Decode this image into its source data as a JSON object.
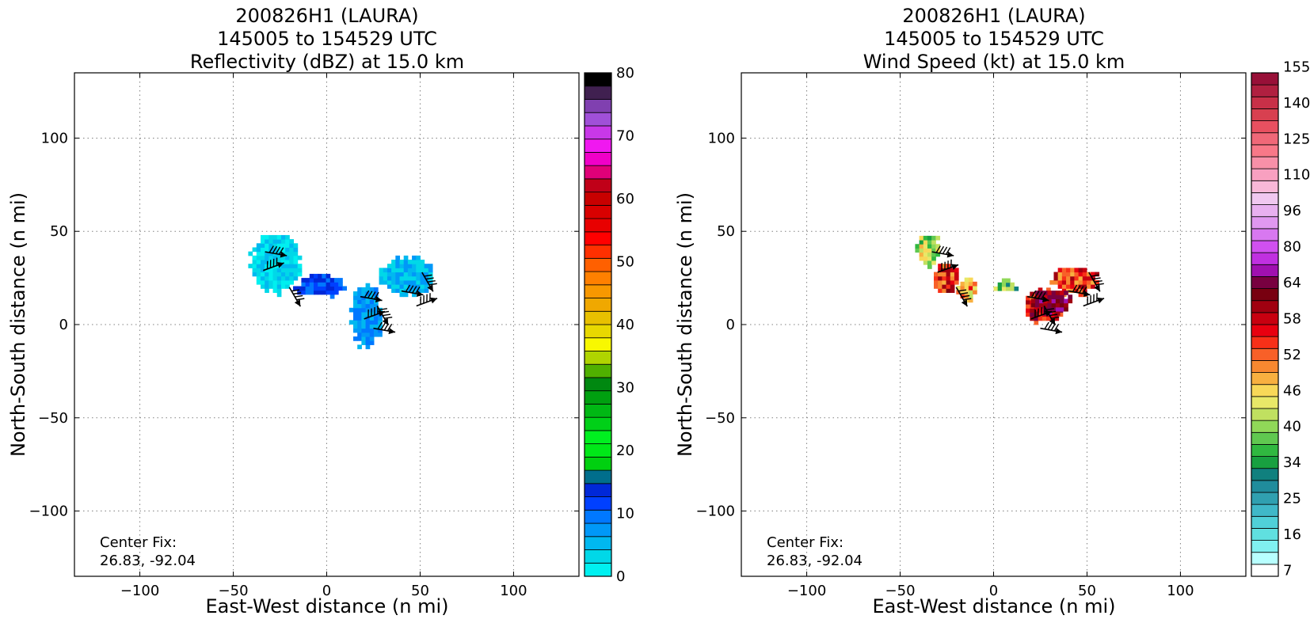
{
  "colors": {
    "background": "#ffffff",
    "grid": "#808080",
    "reflectivity_levels": [
      "#00f0f0",
      "#00d8e8",
      "#00b8f0",
      "#0098f8",
      "#0078ff",
      "#0040ff",
      "#0028d8",
      "#006e8c",
      "#00d010",
      "#00e818",
      "#00f020",
      "#00d018",
      "#00b814",
      "#00a010",
      "#008810",
      "#50b000",
      "#b0d400",
      "#f8f800",
      "#e8d800",
      "#e8c000",
      "#f0a800",
      "#f89800",
      "#ff8000",
      "#ff6000",
      "#ff3000",
      "#ff0000",
      "#e80000",
      "#d80000",
      "#c80000",
      "#c00018",
      "#e00078",
      "#f000c8",
      "#f018f0",
      "#c838e8",
      "#a050d8",
      "#8040b0",
      "#402050",
      "#000000"
    ],
    "windspeed_levels": [
      "#ffffff",
      "#b8ffff",
      "#80f0f0",
      "#60e0e0",
      "#50d0d8",
      "#40b8c8",
      "#30a0b0",
      "#208c9c",
      "#10807e",
      "#18a040",
      "#30b840",
      "#60c850",
      "#90d858",
      "#c0e060",
      "#e8e868",
      "#f8d858",
      "#f8b040",
      "#f88830",
      "#f86028",
      "#f83018",
      "#e80010",
      "#c80010",
      "#a00010",
      "#780010",
      "#780040",
      "#a010b0",
      "#c030e0",
      "#d050f0",
      "#d878f0",
      "#e098f0",
      "#e8b0f0",
      "#f0c8f0",
      "#f8b8d8",
      "#f8a0c0",
      "#f890a8",
      "#f87888",
      "#f06878",
      "#e85060",
      "#d84050",
      "#c83048",
      "#b02040",
      "#981038"
    ]
  },
  "panels": [
    {
      "title_lines": [
        "200826H1 (LAURA)",
        "145005 to 154529 UTC",
        "Reflectivity (dBZ) at 15.0 km"
      ],
      "xlabel": "East-West distance (n mi)",
      "ylabel": "North-South distance (n mi)",
      "center_fix_label": "Center Fix:",
      "center_fix_value": "26.83, -92.04",
      "colorbar_ticks": [
        "0",
        "10",
        "20",
        "30",
        "40",
        "50",
        "60",
        "70",
        "80"
      ],
      "colorbar_palette": "reflectivity_levels"
    },
    {
      "title_lines": [
        "200826H1 (LAURA)",
        "145005 to 154529 UTC",
        "Wind Speed (kt) at 15.0 km"
      ],
      "xlabel": "East-West distance (n mi)",
      "ylabel": "North-South distance (n mi)",
      "center_fix_label": "Center Fix:",
      "center_fix_value": "26.83, -92.04",
      "colorbar_ticks": [
        "7",
        "16",
        "25",
        "34",
        "40",
        "46",
        "52",
        "58",
        "64",
        "80",
        "96",
        "110",
        "125",
        "140",
        "155"
      ],
      "colorbar_palette": "windspeed_levels"
    }
  ],
  "chart_data": [
    {
      "type": "heatmap",
      "title": "200826H1 (LAURA) 145005 to 154529 UTC Reflectivity (dBZ) at 15.0 km",
      "variable": "Reflectivity (dBZ)",
      "xlabel": "East-West distance (n mi)",
      "ylabel": "North-South distance (n mi)",
      "xlim": [
        -135,
        135
      ],
      "ylim": [
        -135,
        135
      ],
      "xticks": [
        -100,
        -50,
        0,
        50,
        100
      ],
      "yticks": [
        -100,
        -50,
        0,
        50,
        100
      ],
      "grid": true,
      "colorbar": {
        "min": 0,
        "max": 80,
        "ticks": [
          0,
          10,
          20,
          30,
          40,
          50,
          60,
          70,
          80
        ]
      },
      "echo_regions": [
        {
          "x": [
            -42,
            -15
          ],
          "y": [
            15,
            48
          ],
          "value_dbz": 2
        },
        {
          "x": [
            -18,
            10
          ],
          "y": [
            14,
            26
          ],
          "value_dbz": 10
        },
        {
          "x": [
            12,
            28
          ],
          "y": [
            -13,
            22
          ],
          "value_dbz": 6
        },
        {
          "x": [
            28,
            56
          ],
          "y": [
            15,
            35
          ],
          "value_dbz": 3
        }
      ],
      "wind_barbs": [
        {
          "x": -33,
          "y": 39
        },
        {
          "x": -34,
          "y": 29
        },
        {
          "x": -20,
          "y": 20
        },
        {
          "x": 18,
          "y": 15
        },
        {
          "x": 20,
          "y": 3
        },
        {
          "x": 27,
          "y": 10
        },
        {
          "x": 40,
          "y": 18
        },
        {
          "x": 48,
          "y": 10
        },
        {
          "x": 51,
          "y": 28
        },
        {
          "x": 25,
          "y": -2
        }
      ],
      "center_fix": "26.83, -92.04"
    },
    {
      "type": "heatmap",
      "title": "200826H1 (LAURA) 145005 to 154529 UTC Wind Speed (kt) at 15.0 km",
      "variable": "Wind Speed (kt)",
      "xlabel": "East-West distance (n mi)",
      "ylabel": "North-South distance (n mi)",
      "xlim": [
        -135,
        135
      ],
      "ylim": [
        -135,
        135
      ],
      "xticks": [
        -100,
        -50,
        0,
        50,
        100
      ],
      "yticks": [
        -100,
        -50,
        0,
        50,
        100
      ],
      "grid": true,
      "colorbar": {
        "ticks": [
          7,
          16,
          25,
          34,
          40,
          46,
          52,
          58,
          64,
          80,
          96,
          110,
          125,
          140,
          155
        ]
      },
      "wind_regions": [
        {
          "x": [
            -42,
            -30
          ],
          "y": [
            30,
            48
          ],
          "value_kt": 42
        },
        {
          "x": [
            -32,
            -20
          ],
          "y": [
            15,
            32
          ],
          "value_kt": 56
        },
        {
          "x": [
            -20,
            -10
          ],
          "y": [
            12,
            25
          ],
          "value_kt": 50
        },
        {
          "x": [
            0,
            12
          ],
          "y": [
            16,
            23
          ],
          "value_kt": 38
        },
        {
          "x": [
            15,
            35
          ],
          "y": [
            0,
            18
          ],
          "value_kt": 58
        },
        {
          "x": [
            30,
            55
          ],
          "y": [
            15,
            30
          ],
          "value_kt": 55
        },
        {
          "x": [
            20,
            40
          ],
          "y": [
            5,
            18
          ],
          "value_kt": 66
        }
      ],
      "wind_barbs": [
        {
          "x": -33,
          "y": 39
        },
        {
          "x": -30,
          "y": 28
        },
        {
          "x": -20,
          "y": 20
        },
        {
          "x": 18,
          "y": 15
        },
        {
          "x": 20,
          "y": 3
        },
        {
          "x": 27,
          "y": 10
        },
        {
          "x": 40,
          "y": 18
        },
        {
          "x": 48,
          "y": 10
        },
        {
          "x": 51,
          "y": 28
        },
        {
          "x": 25,
          "y": -2
        }
      ],
      "center_fix": "26.83, -92.04"
    }
  ]
}
